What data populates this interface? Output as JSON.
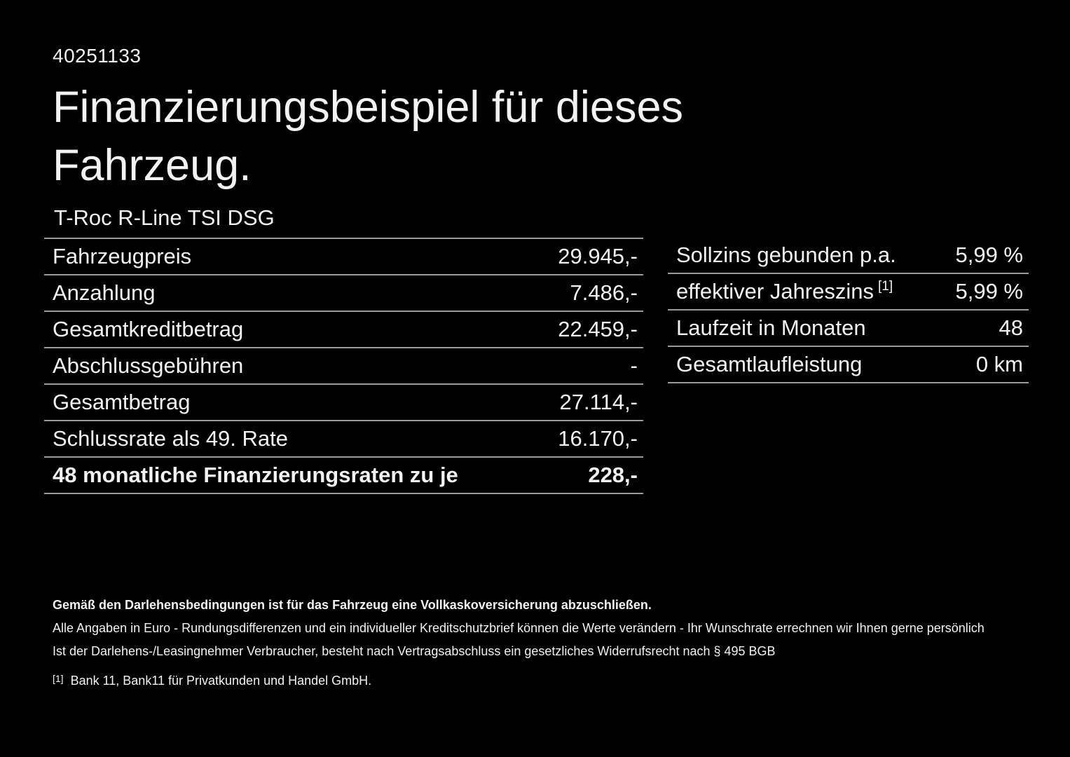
{
  "page": {
    "background": "#000000",
    "text_color": "#f2f2f2",
    "divider_color": "#9a9a9a"
  },
  "header": {
    "doc_number": "40251133",
    "title": "Finanzierungsbeispiel für dieses\nFahrzeug.",
    "vehicle_model": "T-Roc R-Line TSI DSG"
  },
  "finance_table": {
    "rows": [
      {
        "label": "Fahrzeugpreis",
        "value": "29.945,-"
      },
      {
        "label": "Anzahlung",
        "value": "7.486,-"
      },
      {
        "label": "Gesamtkreditbetrag",
        "value": "22.459,-"
      },
      {
        "label": "Abschlussgebühren",
        "value": "-"
      },
      {
        "label": "Gesamtbetrag",
        "value": "27.114,-"
      },
      {
        "label": "Schlussrate als 49. Rate",
        "value": "16.170,-"
      },
      {
        "label": "48 monatliche Finanzierungsraten zu je",
        "value": "228,-"
      }
    ]
  },
  "conditions_table": {
    "rows": [
      {
        "label": "Sollzins gebunden p.a.",
        "value": "5,99 %"
      },
      {
        "label": "effektiver Jahreszins",
        "sup": "[1]",
        "value": "5,99 %"
      },
      {
        "label": "Laufzeit in Monaten",
        "value": "48"
      },
      {
        "label": "Gesamtlaufleistung",
        "value": "0 km"
      }
    ]
  },
  "fine_print": {
    "insurance_note": "Gemäß den Darlehensbedingungen ist für das Fahrzeug eine Vollkaskoversicherung abzuschließen.",
    "rounding_note": "Alle Angaben in Euro - Rundungsdifferenzen und ein individueller Kreditschutzbrief können die Werte verändern - Ihr Wunschrate errechnen wir Ihnen gerne persönlich",
    "withdrawal_note": "Ist der Darlehens-/Leasingnehmer Verbraucher, besteht nach Vertragsabschluss ein gesetzliches Widerrufsrecht nach § 495 BGB",
    "footnote_marker": "[1]",
    "footnote_text": "Bank 11, Bank11 für Privatkunden und Handel GmbH."
  }
}
